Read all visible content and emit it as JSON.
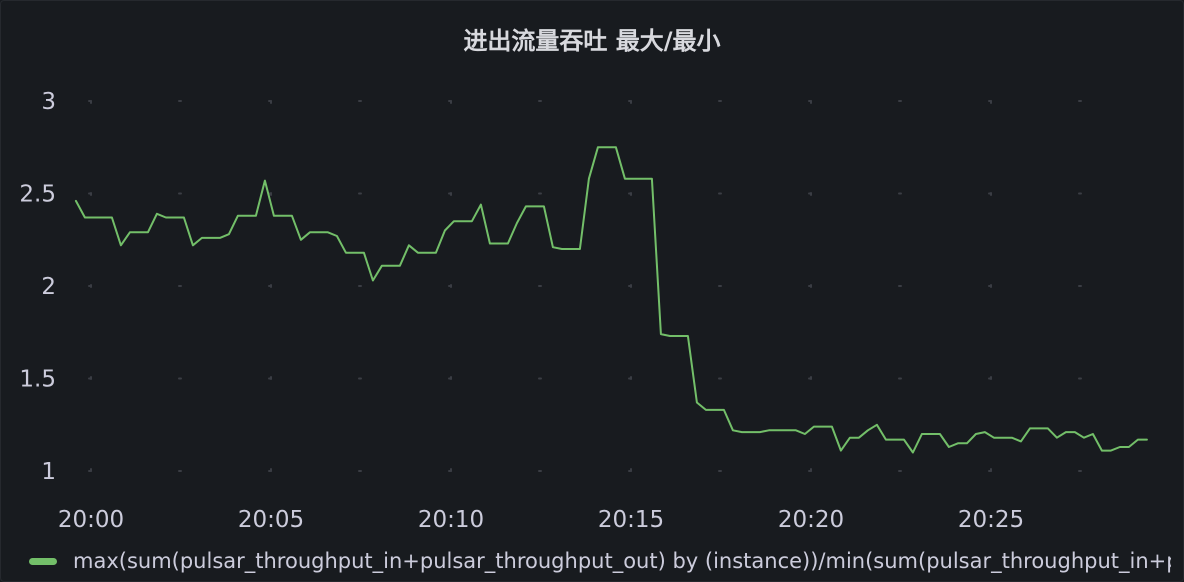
{
  "panel": {
    "title": "进出流量吞吐 最大/最小"
  },
  "colors": {
    "background": "#181b1f",
    "series": "#73bf69",
    "grid": "#3a3d44",
    "text": "#ccccdc"
  },
  "legend": {
    "items": [
      {
        "label": "max(sum(pulsar_throughput_in+pulsar_throughput_out) by (instance))/min(sum(pulsar_throughput_in+pulsar_throughput_out) by (instance))"
      }
    ]
  },
  "chart_data": {
    "type": "line",
    "title": "进出流量吞吐 最大/最小",
    "xlabel": "",
    "ylabel": "",
    "x_tick_labels": [
      "20:00",
      "20:05",
      "20:10",
      "20:15",
      "20:20",
      "20:25"
    ],
    "x_ticks_minutes": [
      0,
      5,
      10,
      15,
      20,
      25
    ],
    "xlim_minutes": [
      -0.5,
      29.5
    ],
    "y_ticks": [
      1,
      1.5,
      2,
      2.5,
      3
    ],
    "y_tick_labels": [
      "1",
      "1.5",
      "2",
      "2.5",
      "3"
    ],
    "ylim": [
      1,
      3
    ],
    "grid": true,
    "legend_position": "bottom-left",
    "series": [
      {
        "name": "max(sum(pulsar_throughput_in+pulsar_throughput_out) by (instance))/min(sum(pulsar_throughput_in+pulsar_throughput_out) by (instance))",
        "x_minutes": [
          -0.42,
          -0.17,
          0.08,
          0.33,
          0.58,
          0.83,
          1.08,
          1.33,
          1.58,
          1.83,
          2.08,
          2.33,
          2.58,
          2.83,
          3.08,
          3.33,
          3.58,
          3.83,
          4.08,
          4.33,
          4.58,
          4.83,
          5.08,
          5.33,
          5.58,
          5.83,
          6.08,
          6.33,
          6.58,
          6.83,
          7.08,
          7.33,
          7.58,
          7.83,
          8.08,
          8.33,
          8.58,
          8.83,
          9.08,
          9.33,
          9.58,
          9.83,
          10.08,
          10.33,
          10.58,
          10.83,
          11.08,
          11.33,
          11.58,
          11.83,
          12.08,
          12.33,
          12.58,
          12.83,
          13.08,
          13.33,
          13.58,
          13.83,
          14.08,
          14.33,
          14.58,
          14.83,
          15.08,
          15.33,
          15.58,
          15.83,
          16.08,
          16.33,
          16.58,
          16.83,
          17.08,
          17.33,
          17.58,
          17.83,
          18.08,
          18.33,
          18.58,
          18.83,
          19.08,
          19.33,
          19.58,
          19.83,
          20.08,
          20.33,
          20.58,
          20.83,
          21.08,
          21.33,
          21.58,
          21.83,
          22.08,
          22.33,
          22.58,
          22.83,
          23.08,
          23.33,
          23.58,
          23.83,
          24.08,
          24.33,
          24.58,
          24.83,
          25.08,
          25.33,
          25.58,
          25.83,
          26.08,
          26.33,
          26.58,
          26.83,
          27.08,
          27.33,
          27.58,
          27.83,
          28.08,
          28.33,
          28.58,
          28.83,
          29.08,
          29.33
        ],
        "values": [
          2.46,
          2.37,
          2.37,
          2.37,
          2.37,
          2.22,
          2.29,
          2.29,
          2.29,
          2.39,
          2.37,
          2.37,
          2.37,
          2.22,
          2.26,
          2.26,
          2.26,
          2.28,
          2.38,
          2.38,
          2.38,
          2.57,
          2.38,
          2.38,
          2.38,
          2.25,
          2.29,
          2.29,
          2.29,
          2.27,
          2.18,
          2.18,
          2.18,
          2.03,
          2.11,
          2.11,
          2.11,
          2.22,
          2.18,
          2.18,
          2.18,
          2.3,
          2.35,
          2.35,
          2.35,
          2.44,
          2.23,
          2.23,
          2.23,
          2.34,
          2.43,
          2.43,
          2.43,
          2.21,
          2.2,
          2.2,
          2.2,
          2.58,
          2.75,
          2.75,
          2.75,
          2.58,
          2.58,
          2.58,
          2.58,
          1.74,
          1.73,
          1.73,
          1.73,
          1.37,
          1.33,
          1.33,
          1.33,
          1.22,
          1.21,
          1.21,
          1.21,
          1.22,
          1.22,
          1.22,
          1.22,
          1.2,
          1.24,
          1.24,
          1.24,
          1.11,
          1.18,
          1.18,
          1.22,
          1.25,
          1.17,
          1.17,
          1.17,
          1.1,
          1.2,
          1.2,
          1.2,
          1.13,
          1.15,
          1.15,
          1.2,
          1.21,
          1.18,
          1.18,
          1.18,
          1.16,
          1.23,
          1.23,
          1.23,
          1.18,
          1.21,
          1.21,
          1.18,
          1.2,
          1.11,
          1.11,
          1.13,
          1.13,
          1.17,
          1.17
        ]
      }
    ]
  }
}
